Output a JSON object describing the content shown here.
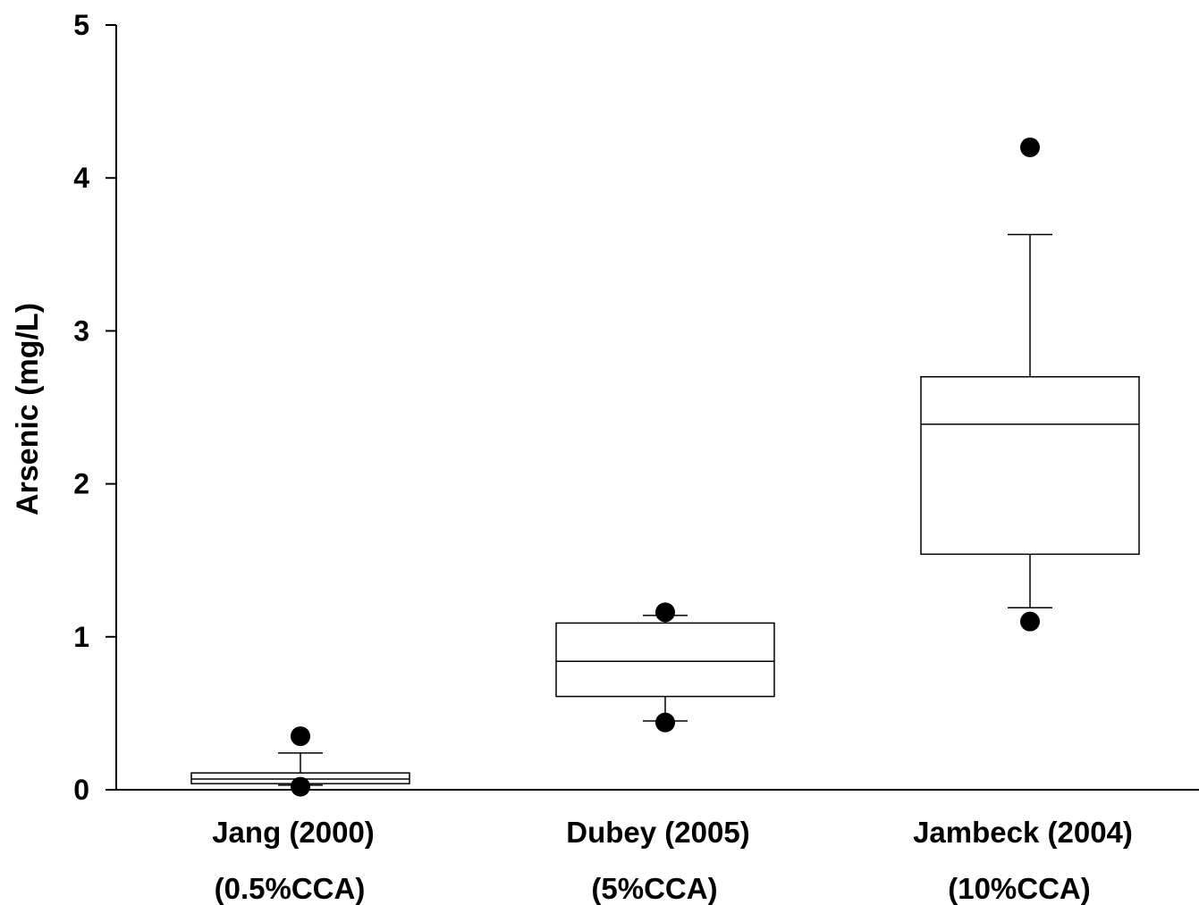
{
  "chart_data": {
    "type": "box",
    "title": "",
    "xlabel": "",
    "ylabel": "Arsenic (mg/L)",
    "ylim": [
      0,
      5
    ],
    "yticks": [
      "0",
      "1",
      "2",
      "3",
      "4",
      "5"
    ],
    "grid": false,
    "legend": "none",
    "box_color": "#000000",
    "fill_color": "#ffffff",
    "categories": [
      {
        "line1": "Jang (2000)",
        "line2": "(0.5%CCA)"
      },
      {
        "line1": "Dubey (2005)",
        "line2": "(5%CCA)"
      },
      {
        "line1": "Jambeck (2004)",
        "line2": "(10%CCA)"
      }
    ],
    "boxes": [
      {
        "whisker_low": 0.03,
        "q1": 0.04,
        "median": 0.07,
        "q3": 0.11,
        "whisker_high": 0.24,
        "outliers": [
          0.02,
          0.35
        ]
      },
      {
        "whisker_low": 0.45,
        "q1": 0.61,
        "median": 0.84,
        "q3": 1.09,
        "whisker_high": 1.14,
        "outliers": [
          0.44,
          1.16
        ]
      },
      {
        "whisker_low": 1.19,
        "q1": 1.54,
        "median": 2.39,
        "q3": 2.7,
        "whisker_high": 3.63,
        "outliers": [
          1.1,
          4.2
        ]
      }
    ]
  }
}
